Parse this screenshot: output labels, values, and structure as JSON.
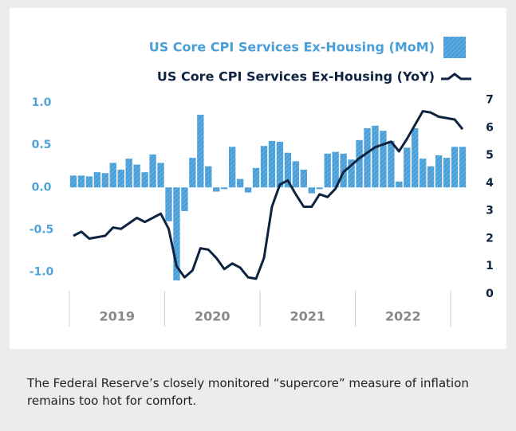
{
  "chart_data": {
    "type": "bar-line",
    "categories": [
      null,
      null,
      null,
      null,
      null,
      null,
      null,
      null,
      null,
      null,
      null,
      null,
      null,
      null,
      null,
      null,
      null,
      null,
      null,
      null,
      null,
      null,
      null,
      null,
      null,
      null,
      null,
      null,
      null,
      null,
      null,
      null,
      null,
      null,
      null,
      null,
      null,
      null,
      null,
      null,
      null,
      null,
      null,
      null,
      null,
      null,
      null,
      null,
      null,
      null
    ],
    "year_labels": [
      "2019",
      "2020",
      "2021",
      "2022"
    ],
    "series": [
      {
        "name": "US Core CPI Services Ex-Housing (MoM)",
        "color": "#4a9fd8",
        "type": "bar",
        "values": [
          0.14,
          0.14,
          0.13,
          0.18,
          0.17,
          0.29,
          0.21,
          0.34,
          0.27,
          0.18,
          0.39,
          0.29,
          -0.4,
          -1.1,
          -0.28,
          0.35,
          0.86,
          0.25,
          -0.05,
          -0.02,
          0.48,
          0.1,
          -0.06,
          0.23,
          0.49,
          0.55,
          0.54,
          0.41,
          0.31,
          0.21,
          -0.07,
          -0.02,
          0.4,
          0.42,
          0.4,
          0.33,
          0.56,
          0.7,
          0.73,
          0.67,
          0.55,
          0.07,
          0.47,
          0.7,
          0.34,
          0.25,
          0.38,
          0.35,
          0.48,
          0.48
        ]
      },
      {
        "name": "US Core CPI Services Ex-Housing (YoY)",
        "color": "#0d2340",
        "type": "line",
        "axis": "y2",
        "values": [
          2.1,
          2.25,
          2.0,
          2.05,
          2.1,
          2.4,
          2.35,
          2.55,
          2.75,
          2.6,
          2.75,
          2.9,
          2.35,
          1.0,
          0.6,
          0.85,
          1.65,
          1.6,
          1.3,
          0.9,
          1.1,
          0.95,
          0.6,
          0.55,
          1.3,
          3.15,
          3.95,
          4.1,
          3.6,
          3.15,
          3.15,
          3.6,
          3.5,
          3.8,
          4.4,
          4.65,
          4.9,
          5.1,
          5.3,
          5.4,
          5.5,
          5.15,
          5.6,
          6.1,
          6.6,
          6.55,
          6.4,
          6.35,
          6.3,
          5.95
        ]
      }
    ],
    "ylim": [
      -1.26,
      1.18
    ],
    "yticks": [
      {
        "value": 1.0,
        "label": "1.0"
      },
      {
        "value": 0.5,
        "label": "0.5"
      },
      {
        "value": 0.0,
        "label": "0.0"
      },
      {
        "value": -0.5,
        "label": "-0.5"
      },
      {
        "value": -1.0,
        "label": "-1.0"
      }
    ],
    "y2lim": [
      0,
      7.45
    ],
    "y2ticks": [
      0,
      1,
      2,
      3,
      4,
      5,
      6,
      7
    ]
  },
  "caption": "The Federal Reserve’s closely monitored “supercore” measure of inflation remains too hot for comfort."
}
